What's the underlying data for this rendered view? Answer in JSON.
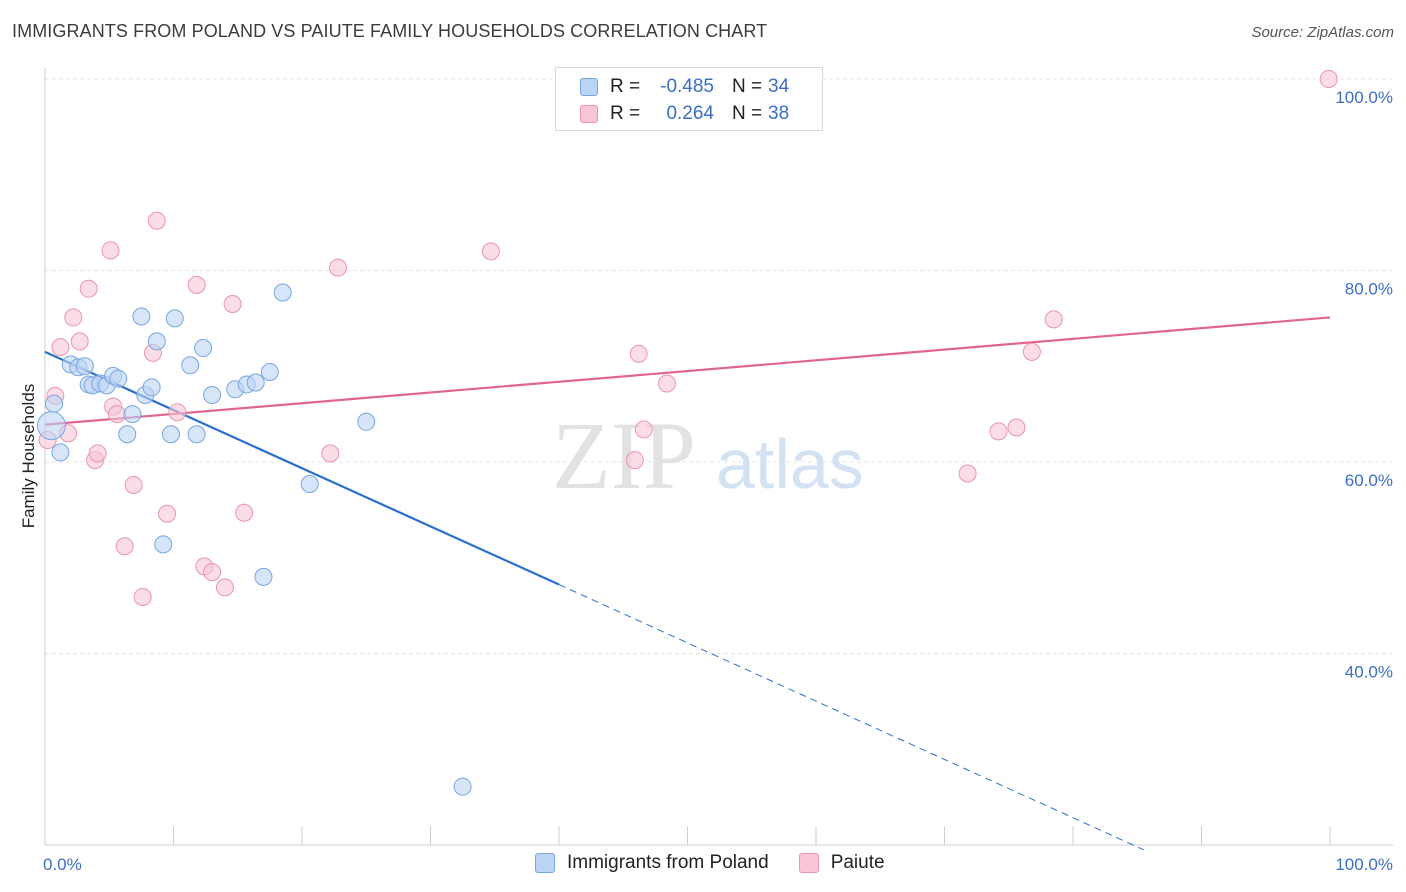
{
  "header": {
    "title": "IMMIGRANTS FROM POLAND VS PAIUTE FAMILY HOUSEHOLDS CORRELATION CHART",
    "source": "Source: ZipAtlas.com"
  },
  "colors": {
    "blue_fill": "#bcd4f4",
    "blue_stroke": "#7aa6e0",
    "blue_line": "#2a6fcf",
    "pink_fill": "#f9c6d6",
    "pink_stroke": "#ec94b2",
    "pink_line": "#e06690",
    "axis_text": "#3a6fc4"
  },
  "legend": {
    "rows": [
      {
        "r_label": "R =",
        "r_value": "-0.485",
        "n_label": "N =",
        "n_value": "34"
      },
      {
        "r_label": "R =",
        "r_value": "0.264",
        "n_label": "N =",
        "n_value": "38"
      }
    ]
  },
  "bottom_legend": {
    "series1": "Immigrants from Poland",
    "series2": "Paiute"
  },
  "watermark": {
    "zip": "ZIP",
    "atlas": "atlas"
  },
  "chart_data": {
    "type": "scatter",
    "title": "IMMIGRANTS FROM POLAND VS PAIUTE FAMILY HOUSEHOLDS CORRELATION CHART",
    "xlabel": "",
    "ylabel": "Family Households",
    "xlim": [
      0,
      100
    ],
    "ylim": [
      20,
      100
    ],
    "x_tick_labels": [
      "0.0%",
      "100.0%"
    ],
    "y_ticks": [
      40,
      60,
      80,
      100
    ],
    "y_tick_labels": [
      "40.0%",
      "60.0%",
      "80.0%",
      "100.0%"
    ],
    "grid": true,
    "series": [
      {
        "name": "Immigrants from Poland",
        "R": -0.485,
        "N": 34,
        "trend": {
          "x0": 0,
          "y0": 71.5,
          "x1": 40,
          "y1": 47.2,
          "dash_to_x": 85.5,
          "dash_to_y": 19.5
        },
        "points": [
          [
            0.7,
            66.1
          ],
          [
            1.2,
            61.0
          ],
          [
            2.0,
            70.2
          ],
          [
            2.6,
            69.9
          ],
          [
            3.1,
            70.0
          ],
          [
            3.4,
            68.1
          ],
          [
            3.7,
            68.0
          ],
          [
            4.3,
            68.2
          ],
          [
            4.8,
            68.0
          ],
          [
            5.3,
            69.0
          ],
          [
            5.7,
            68.7
          ],
          [
            6.4,
            62.9
          ],
          [
            6.8,
            65.0
          ],
          [
            7.5,
            75.2
          ],
          [
            7.8,
            67.0
          ],
          [
            8.3,
            67.8
          ],
          [
            8.7,
            72.6
          ],
          [
            9.2,
            51.4
          ],
          [
            9.8,
            62.9
          ],
          [
            10.1,
            75.0
          ],
          [
            11.3,
            70.1
          ],
          [
            11.8,
            62.9
          ],
          [
            12.3,
            71.9
          ],
          [
            13.0,
            67.0
          ],
          [
            14.8,
            67.6
          ],
          [
            15.7,
            68.1
          ],
          [
            16.4,
            68.3
          ],
          [
            17.0,
            48.0
          ],
          [
            17.5,
            69.4
          ],
          [
            18.5,
            77.7
          ],
          [
            20.6,
            57.7
          ],
          [
            25.0,
            64.2
          ],
          [
            32.5,
            26.1
          ],
          [
            0.5,
            63.8
          ]
        ]
      },
      {
        "name": "Paiute",
        "R": 0.264,
        "N": 38,
        "trend": {
          "x0": 0,
          "y0": 63.9,
          "x1": 100,
          "y1": 75.1
        },
        "points": [
          [
            0.2,
            62.3
          ],
          [
            0.8,
            66.9
          ],
          [
            1.2,
            72.0
          ],
          [
            1.8,
            63.0
          ],
          [
            2.2,
            75.1
          ],
          [
            2.7,
            72.6
          ],
          [
            3.4,
            78.1
          ],
          [
            3.9,
            60.2
          ],
          [
            4.1,
            60.9
          ],
          [
            5.1,
            82.1
          ],
          [
            5.3,
            65.8
          ],
          [
            5.6,
            65.0
          ],
          [
            6.2,
            51.2
          ],
          [
            6.9,
            57.6
          ],
          [
            7.6,
            45.9
          ],
          [
            8.4,
            71.4
          ],
          [
            8.7,
            85.2
          ],
          [
            9.5,
            54.6
          ],
          [
            10.3,
            65.2
          ],
          [
            11.8,
            78.5
          ],
          [
            12.4,
            49.1
          ],
          [
            13.0,
            48.5
          ],
          [
            14.0,
            46.9
          ],
          [
            14.6,
            76.5
          ],
          [
            15.5,
            54.7
          ],
          [
            22.2,
            60.9
          ],
          [
            22.8,
            80.3
          ],
          [
            34.7,
            82.0
          ],
          [
            46.2,
            71.3
          ],
          [
            45.9,
            60.2
          ],
          [
            46.6,
            63.4
          ],
          [
            48.4,
            68.2
          ],
          [
            71.8,
            58.8
          ],
          [
            74.2,
            63.2
          ],
          [
            75.6,
            63.6
          ],
          [
            76.8,
            71.5
          ],
          [
            78.5,
            74.9
          ],
          [
            99.9,
            100.0
          ]
        ]
      }
    ]
  }
}
